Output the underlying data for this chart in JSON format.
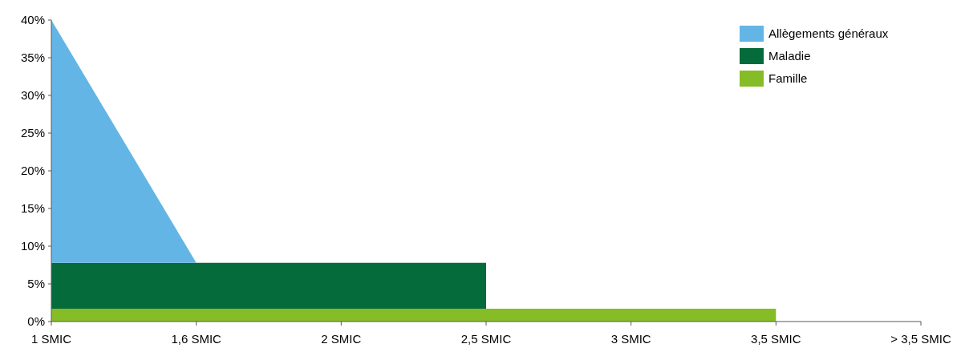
{
  "chart_data": {
    "type": "area",
    "stacked": true,
    "categories": [
      "1 SMIC",
      "1,6 SMIC",
      "2 SMIC",
      "2,5 SMIC",
      "3 SMIC",
      "3,5 SMIC",
      "> 3,5 SMIC"
    ],
    "series": [
      {
        "name": "Famille",
        "color": "#86bc25",
        "values": [
          1.7,
          1.7,
          1.7,
          1.7,
          1.7,
          1.7,
          null
        ]
      },
      {
        "name": "Maladie",
        "color": "#056b3a",
        "values": [
          6.1,
          6.1,
          6.1,
          6.1,
          null,
          null,
          null
        ]
      },
      {
        "name": "Allègements généraux",
        "color": "#63b5e5",
        "values": [
          32.2,
          0,
          null,
          null,
          null,
          null,
          null
        ]
      }
    ],
    "ylim": [
      0,
      40
    ],
    "yticks": [
      {
        "value": 0,
        "label": "0%"
      },
      {
        "value": 5,
        "label": "5%"
      },
      {
        "value": 10,
        "label": "10%"
      },
      {
        "value": 15,
        "label": "15%"
      },
      {
        "value": 20,
        "label": "20%"
      },
      {
        "value": 25,
        "label": "25%"
      },
      {
        "value": 30,
        "label": "30%"
      },
      {
        "value": 35,
        "label": "35%"
      },
      {
        "value": 40,
        "label": "40%"
      }
    ],
    "legend": "top right",
    "grid": false
  }
}
